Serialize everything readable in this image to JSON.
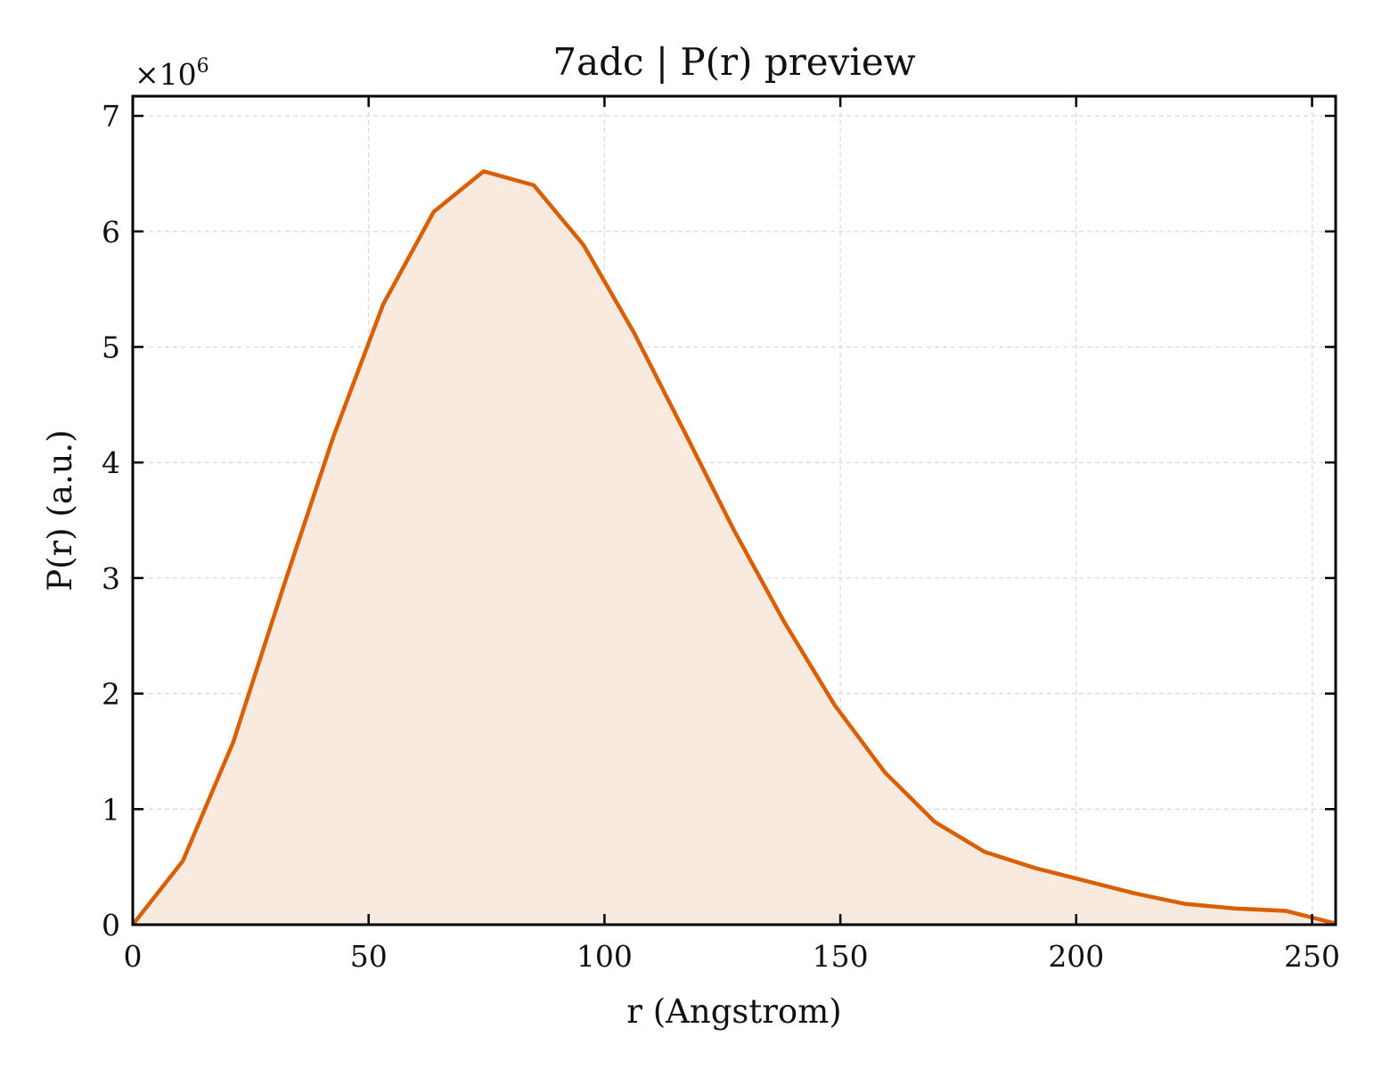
{
  "chart_data": {
    "type": "area",
    "title": "7adc | P(r) preview",
    "xlabel": "r (Angstrom)",
    "ylabel": "P(r) (a.u.)",
    "y_multiplier_base": "×10",
    "y_multiplier_exp": "6",
    "xlim": [
      0,
      255
    ],
    "ylim": [
      0,
      7.17
    ],
    "xticks": [
      0,
      50,
      100,
      150,
      200,
      250
    ],
    "yticks": [
      0,
      1,
      2,
      3,
      4,
      5,
      6,
      7
    ],
    "grid": true,
    "line_color": "#d95f02",
    "fill_color": "#f9eadf",
    "series": [
      {
        "x": [
          0,
          10.6,
          21.3,
          31.9,
          42.5,
          53.1,
          63.8,
          74.4,
          85.0,
          95.6,
          106.3,
          116.9,
          127.5,
          138.1,
          148.8,
          159.4,
          170.0,
          180.6,
          191.3,
          201.9,
          212.5,
          223.1,
          233.8,
          244.4,
          255.0
        ],
        "y": [
          0.0,
          0.55,
          1.58,
          2.92,
          4.22,
          5.37,
          6.17,
          6.52,
          6.4,
          5.88,
          5.12,
          4.27,
          3.41,
          2.62,
          1.9,
          1.32,
          0.89,
          0.63,
          0.49,
          0.38,
          0.27,
          0.18,
          0.14,
          0.12,
          0.01
        ]
      }
    ]
  }
}
